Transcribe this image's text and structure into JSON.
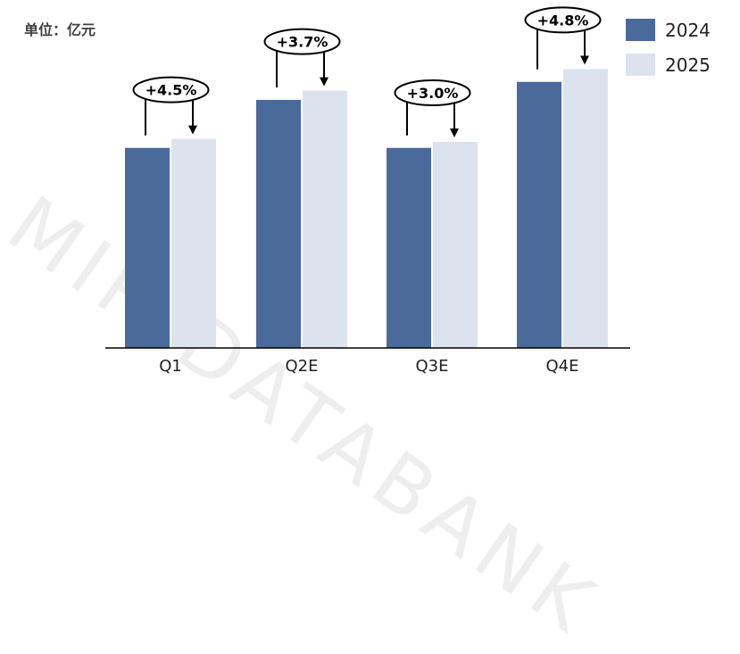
{
  "unit_label": "单位：亿元",
  "watermark": "MIR DATABANK",
  "legend": [
    {
      "name": "2024",
      "color": "#4a6a9c"
    },
    {
      "name": "2025",
      "color": "#dde3ee"
    }
  ],
  "chart_data": {
    "type": "bar",
    "categories": [
      "Q1",
      "Q2E",
      "Q3E",
      "Q4E"
    ],
    "series": [
      {
        "name": "2024",
        "values": [
          100,
          124,
          100,
          133
        ]
      },
      {
        "name": "2025",
        "values": [
          104.5,
          128.6,
          103,
          139.4
        ]
      }
    ],
    "annotations": [
      "+4.5%",
      "+3.7%",
      "+3.0%",
      "+4.8%"
    ],
    "ylim": [
      0,
      165
    ],
    "grid": false,
    "legend_position": "top-right",
    "colors": {
      "2024": "#4a6a9c",
      "2025": "#dde3ee"
    }
  }
}
